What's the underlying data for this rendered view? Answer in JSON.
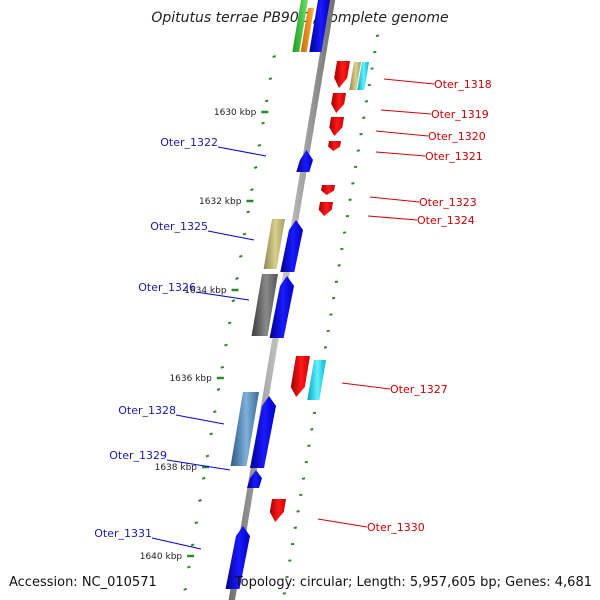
{
  "title": "Opitutus terrae PB90-1, complete genome",
  "footer": {
    "accession": "Accession: NC_010571",
    "summary": "Topology: circular; Length: 5,957,605 bp; Genes: 4,681"
  },
  "colors": {
    "forward_gene": "#0000ff",
    "reverse_gene": "#ff0000",
    "forward_label": "#1a1aa6",
    "reverse_label": "#cc0000",
    "tick": "#2a8a2a",
    "backbone": "#8a8a8a"
  },
  "kbp_labels": [
    "1630 kbp",
    "1632 kbp",
    "1634 kbp",
    "1636 kbp",
    "1638 kbp",
    "1640 kbp"
  ],
  "genes_forward": [
    "Oter_1322",
    "Oter_1325",
    "Oter_1326",
    "Oter_1328",
    "Oter_1329",
    "Oter_1331"
  ],
  "genes_reverse": [
    "Oter_1318",
    "Oter_1319",
    "Oter_1320",
    "Oter_1321",
    "Oter_1323",
    "Oter_1324",
    "Oter_1327",
    "Oter_1330"
  ]
}
